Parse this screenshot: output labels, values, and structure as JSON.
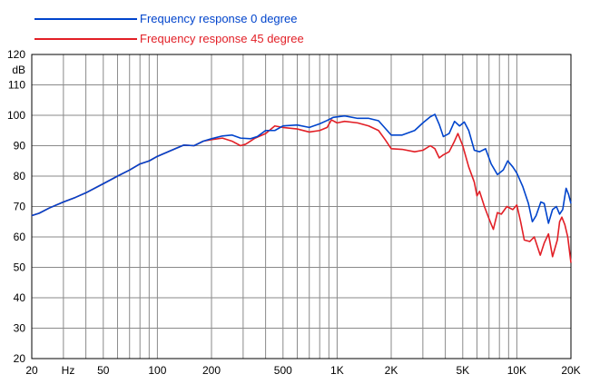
{
  "chart_data": {
    "type": "line",
    "title": "",
    "xlabel": "Hz",
    "ylabel": "dB",
    "x_scale": "log",
    "xlim": [
      20,
      20000
    ],
    "ylim": [
      20,
      120
    ],
    "grid": true,
    "legend_position": "top-left",
    "y_ticks": [
      20,
      30,
      40,
      50,
      60,
      70,
      80,
      90,
      100,
      110,
      120
    ],
    "x_tick_labels": [
      {
        "value": 20,
        "label": "20"
      },
      {
        "value": 50,
        "label": "50"
      },
      {
        "value": 100,
        "label": "100"
      },
      {
        "value": 200,
        "label": "200"
      },
      {
        "value": 500,
        "label": "500"
      },
      {
        "value": 1000,
        "label": "1K"
      },
      {
        "value": 2000,
        "label": "2K"
      },
      {
        "value": 5000,
        "label": "5K"
      },
      {
        "value": 10000,
        "label": "10K"
      },
      {
        "value": 20000,
        "label": "20K"
      }
    ],
    "series": [
      {
        "name": "Frequency response 0 degree",
        "color": "#0044cc",
        "points": [
          [
            20,
            67
          ],
          [
            22,
            67.8
          ],
          [
            25,
            69.5
          ],
          [
            30,
            71.5
          ],
          [
            35,
            73
          ],
          [
            40,
            74.5
          ],
          [
            50,
            77.5
          ],
          [
            60,
            80
          ],
          [
            70,
            82
          ],
          [
            80,
            84
          ],
          [
            90,
            85
          ],
          [
            100,
            86.5
          ],
          [
            120,
            88.5
          ],
          [
            140,
            90.2
          ],
          [
            160,
            90
          ],
          [
            180,
            91.5
          ],
          [
            200,
            92.3
          ],
          [
            230,
            93.2
          ],
          [
            260,
            93.5
          ],
          [
            290,
            92.5
          ],
          [
            330,
            92.3
          ],
          [
            360,
            93
          ],
          [
            400,
            95
          ],
          [
            450,
            95
          ],
          [
            500,
            96.5
          ],
          [
            600,
            96.8
          ],
          [
            700,
            96
          ],
          [
            800,
            97.2
          ],
          [
            880,
            98.3
          ],
          [
            950,
            99.3
          ],
          [
            1100,
            99.8
          ],
          [
            1300,
            99
          ],
          [
            1500,
            99
          ],
          [
            1700,
            98.2
          ],
          [
            2000,
            93.5
          ],
          [
            2300,
            93.5
          ],
          [
            2700,
            95
          ],
          [
            3000,
            97.5
          ],
          [
            3300,
            99.5
          ],
          [
            3500,
            100.3
          ],
          [
            3700,
            97
          ],
          [
            3900,
            93
          ],
          [
            4200,
            94
          ],
          [
            4500,
            98
          ],
          [
            4800,
            96.5
          ],
          [
            5100,
            97.8
          ],
          [
            5400,
            95
          ],
          [
            5800,
            88.5
          ],
          [
            6200,
            88
          ],
          [
            6700,
            89
          ],
          [
            7200,
            84
          ],
          [
            7800,
            80.5
          ],
          [
            8400,
            82
          ],
          [
            8900,
            85
          ],
          [
            9500,
            83
          ],
          [
            10000,
            81
          ],
          [
            10800,
            76.5
          ],
          [
            11600,
            71
          ],
          [
            12200,
            65
          ],
          [
            12800,
            67
          ],
          [
            13600,
            71.5
          ],
          [
            14200,
            71
          ],
          [
            15000,
            64.5
          ],
          [
            15800,
            69
          ],
          [
            16600,
            70
          ],
          [
            17300,
            67.5
          ],
          [
            18000,
            69
          ],
          [
            18800,
            76
          ],
          [
            19400,
            74
          ],
          [
            20000,
            71
          ]
        ]
      },
      {
        "name": "Frequency response 45 degree",
        "color": "#e21f26",
        "points": [
          [
            20,
            67
          ],
          [
            22,
            67.8
          ],
          [
            25,
            69.5
          ],
          [
            30,
            71.5
          ],
          [
            35,
            73
          ],
          [
            40,
            74.5
          ],
          [
            50,
            77.5
          ],
          [
            60,
            80
          ],
          [
            70,
            82
          ],
          [
            80,
            84
          ],
          [
            90,
            85
          ],
          [
            100,
            86.5
          ],
          [
            120,
            88.5
          ],
          [
            140,
            90.2
          ],
          [
            160,
            90
          ],
          [
            180,
            91.5
          ],
          [
            200,
            92
          ],
          [
            230,
            92.5
          ],
          [
            260,
            91.5
          ],
          [
            290,
            90
          ],
          [
            310,
            90.5
          ],
          [
            350,
            92.5
          ],
          [
            400,
            94
          ],
          [
            450,
            96.5
          ],
          [
            500,
            96
          ],
          [
            600,
            95.5
          ],
          [
            700,
            94.5
          ],
          [
            800,
            95
          ],
          [
            880,
            96
          ],
          [
            930,
            98.5
          ],
          [
            1000,
            97.5
          ],
          [
            1100,
            98
          ],
          [
            1300,
            97.5
          ],
          [
            1500,
            96.5
          ],
          [
            1700,
            95
          ],
          [
            1850,
            92
          ],
          [
            2000,
            89
          ],
          [
            2300,
            88.8
          ],
          [
            2700,
            88
          ],
          [
            3000,
            88.5
          ],
          [
            3300,
            90
          ],
          [
            3500,
            89
          ],
          [
            3700,
            86
          ],
          [
            3900,
            87
          ],
          [
            4200,
            88
          ],
          [
            4500,
            91.5
          ],
          [
            4700,
            94
          ],
          [
            5000,
            90
          ],
          [
            5400,
            83
          ],
          [
            5800,
            78
          ],
          [
            6000,
            73.5
          ],
          [
            6200,
            75
          ],
          [
            6600,
            70
          ],
          [
            7000,
            66
          ],
          [
            7400,
            62.5
          ],
          [
            7800,
            68
          ],
          [
            8200,
            67.5
          ],
          [
            8800,
            70
          ],
          [
            9500,
            69
          ],
          [
            10000,
            70.5
          ],
          [
            10500,
            65
          ],
          [
            11000,
            59
          ],
          [
            11800,
            58.5
          ],
          [
            12500,
            60
          ],
          [
            13500,
            54
          ],
          [
            14200,
            58
          ],
          [
            15000,
            61
          ],
          [
            15800,
            53.5
          ],
          [
            16800,
            59
          ],
          [
            17300,
            65
          ],
          [
            17800,
            66.5
          ],
          [
            18500,
            64
          ],
          [
            19200,
            60
          ],
          [
            20000,
            51.5
          ]
        ]
      }
    ]
  }
}
